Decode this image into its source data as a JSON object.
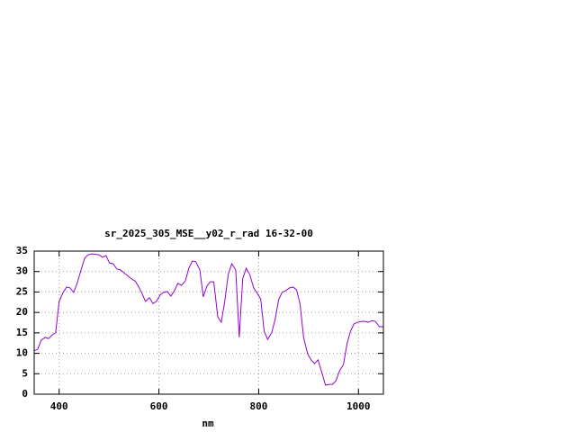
{
  "chart_data": {
    "type": "line",
    "title": "sr_2025_305_MSE__y02_r_rad 16-32-00",
    "x_label": "nm",
    "x": [
      350,
      357,
      364,
      372,
      379,
      386,
      393,
      400,
      408,
      415,
      422,
      429,
      436,
      444,
      451,
      458,
      465,
      480,
      487,
      494,
      501,
      508,
      516,
      523,
      530,
      537,
      545,
      552,
      559,
      566,
      573,
      581,
      588,
      595,
      602,
      609,
      617,
      624,
      631,
      638,
      645,
      653,
      660,
      667,
      674,
      682,
      689,
      696,
      703,
      710,
      718,
      725,
      732,
      739,
      746,
      754,
      761,
      768,
      775,
      782,
      790,
      797,
      804,
      811,
      818,
      826,
      833,
      840,
      847,
      854,
      862,
      869,
      876,
      883,
      890,
      898,
      905,
      912,
      919,
      926,
      934,
      941,
      948,
      955,
      962,
      970,
      977,
      984,
      991,
      998,
      1006,
      1013,
      1020,
      1027,
      1034,
      1042,
      1049
    ],
    "series": [
      {
        "color": "#9400d3",
        "values": [
          10.6,
          11,
          13.2,
          13.9,
          13.6,
          14.5,
          15,
          22.7,
          24.9,
          26.2,
          26,
          24.9,
          27.1,
          30.4,
          33.2,
          34.1,
          34.3,
          34.1,
          33.5,
          33.9,
          32.1,
          31.9,
          30.6,
          30.4,
          29.7,
          29,
          28.2,
          27.7,
          26.4,
          24.7,
          22.7,
          23.6,
          22.2,
          22.7,
          24.2,
          24.9,
          25.1,
          24,
          25.3,
          27.1,
          26.6,
          27.7,
          30.8,
          32.6,
          32.4,
          30.4,
          23.8,
          26.4,
          27.5,
          27.5,
          18.9,
          17.6,
          22.7,
          29.3,
          31.9,
          30.4,
          13.9,
          28.2,
          30.8,
          29.3,
          26,
          24.7,
          23.3,
          15.4,
          13.4,
          15,
          18.3,
          23.1,
          24.9,
          25.3,
          26,
          26.2,
          25.5,
          22,
          13.9,
          9.9,
          8.4,
          7.5,
          8.4,
          5.5,
          2.2,
          2.4,
          2.4,
          3.3,
          5.7,
          7.3,
          12.3,
          15.4,
          17.2,
          17.6,
          17.8,
          17.8,
          17.6,
          18,
          17.8,
          16.5,
          16.5
        ]
      }
    ],
    "xlim": [
      350,
      1050
    ],
    "ylim": [
      0,
      35
    ],
    "xticks": [
      400,
      600,
      800,
      1000
    ],
    "yticks": [
      0,
      5,
      10,
      15,
      20,
      25,
      30,
      35
    ],
    "grid": true
  }
}
